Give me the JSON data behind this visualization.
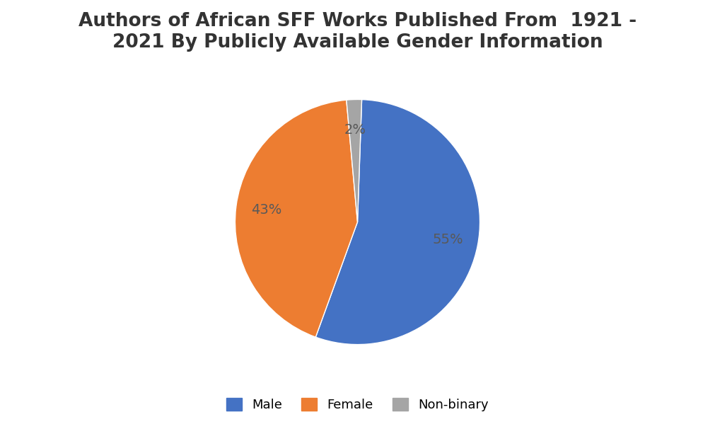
{
  "title": "Authors of African SFF Works Published From  1921 -\n2021 By Publicly Available Gender Information",
  "labels": [
    "Male",
    "Female",
    "Non-binary"
  ],
  "values": [
    55,
    43,
    2
  ],
  "colors": [
    "#4472C4",
    "#ED7D31",
    "#A5A5A5"
  ],
  "background_color": "#FFFFFF",
  "title_fontsize": 19,
  "legend_fontsize": 13,
  "startangle": 88,
  "figsize": [
    10.11,
    6.13
  ],
  "dpi": 100,
  "pct_label_color": "#595959"
}
